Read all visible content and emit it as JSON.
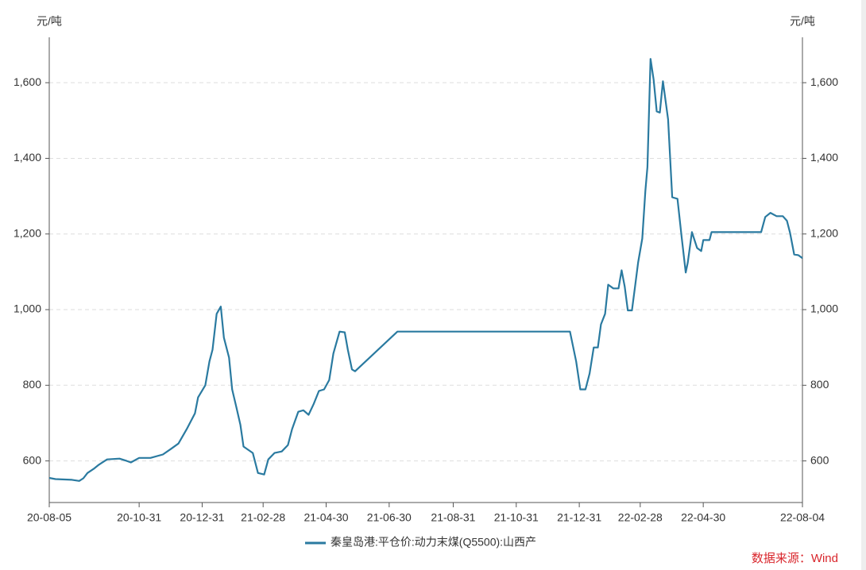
{
  "chart_data": {
    "type": "line",
    "y_unit": "元/吨",
    "y2_unit": "元/吨",
    "source": "数据来源：Wind",
    "x": [
      "20-08-05",
      "20-08-11",
      "20-08-27",
      "20-09-03",
      "20-09-07",
      "20-09-11",
      "20-09-17",
      "20-09-22",
      "20-09-30",
      "20-10-12",
      "20-10-19",
      "20-10-23",
      "20-10-31",
      "20-11-11",
      "20-11-23",
      "20-12-01",
      "20-12-08",
      "20-12-16",
      "20-12-24",
      "20-12-27",
      "21-01-03",
      "21-01-07",
      "21-01-10",
      "21-01-14",
      "21-01-18",
      "21-01-21",
      "21-01-26",
      "21-01-29",
      "21-02-02",
      "21-02-06",
      "21-02-09",
      "21-02-18",
      "21-02-23",
      "21-03-01",
      "21-03-05",
      "21-03-11",
      "21-03-18",
      "21-03-24",
      "21-03-28",
      "21-04-03",
      "21-04-08",
      "21-04-13",
      "21-04-18",
      "21-04-23",
      "21-04-28",
      "21-05-03",
      "21-05-07",
      "21-05-13",
      "21-05-18",
      "21-05-21",
      "21-05-25",
      "21-05-28",
      "21-07-08",
      "21-12-22",
      "21-12-28",
      "22-01-01",
      "22-01-06",
      "22-01-10",
      "22-01-14",
      "22-01-18",
      "22-01-21",
      "22-01-25",
      "22-01-28",
      "22-02-02",
      "22-02-07",
      "22-02-10",
      "22-02-13",
      "22-02-16",
      "22-02-20",
      "22-02-23",
      "22-02-26",
      "22-03-02",
      "22-03-05",
      "22-03-07",
      "22-03-10",
      "22-03-13",
      "22-03-16",
      "22-03-19",
      "22-03-22",
      "22-03-27",
      "22-03-31",
      "22-04-05",
      "22-04-09",
      "22-04-13",
      "22-04-15",
      "22-04-19",
      "22-04-24",
      "22-04-28",
      "22-04-30",
      "22-05-06",
      "22-05-08",
      "22-06-25",
      "22-06-29",
      "22-07-04",
      "22-07-10",
      "22-07-16",
      "22-07-20",
      "22-07-23",
      "22-07-27",
      "22-07-31",
      "22-08-04"
    ],
    "series": [
      {
        "name": "秦皇岛港:平仓价:动力末煤(Q5500):山西产",
        "color": "#2a7aa0",
        "values": [
          555,
          552,
          550,
          547,
          554,
          568,
          579,
          590,
          604,
          606,
          600,
          596,
          608,
          608,
          617,
          632,
          646,
          684,
          726,
          768,
          800,
          863,
          894,
          989,
          1008,
          926,
          873,
          789,
          743,
          695,
          638,
          621,
          568,
          564,
          604,
          621,
          625,
          642,
          684,
          730,
          734,
          722,
          751,
          785,
          789,
          814,
          884,
          942,
          940,
          894,
          842,
          837,
          942,
          942,
          863,
          789,
          789,
          831,
          900,
          900,
          961,
          989,
          1066,
          1056,
          1056,
          1104,
          1061,
          998,
          998,
          1061,
          1125,
          1188,
          1314,
          1377,
          1663,
          1608,
          1524,
          1521,
          1604,
          1503,
          1297,
          1293,
          1193,
          1098,
          1125,
          1205,
          1163,
          1155,
          1184,
          1184,
          1205,
          1205,
          1245,
          1256,
          1247,
          1247,
          1235,
          1203,
          1146,
          1144,
          1136
        ]
      }
    ],
    "xlim": [
      "20-08-05",
      "22-08-04"
    ],
    "xticks": [
      "20-08-05",
      "20-10-31",
      "20-12-31",
      "21-02-28",
      "21-04-30",
      "21-06-30",
      "21-08-31",
      "21-10-31",
      "21-12-31",
      "22-02-28",
      "22-04-30",
      "22-08-04"
    ],
    "ylim": [
      490,
      1720
    ],
    "yticks": [
      600,
      800,
      {
        "value": 1000,
        "label": "1,000"
      },
      {
        "value": 1200,
        "label": "1,200"
      },
      {
        "value": 1400,
        "label": "1,400"
      },
      {
        "value": 1600,
        "label": "1,600"
      }
    ],
    "y2lim": [
      490,
      1720
    ],
    "y2ticks": [
      600,
      800,
      {
        "value": 1000,
        "label": "1,000"
      },
      {
        "value": 1200,
        "label": "1,200"
      },
      {
        "value": 1400,
        "label": "1,400"
      },
      {
        "value": 1600,
        "label": "1,600"
      }
    ],
    "grid": true,
    "legend": "bottom"
  }
}
